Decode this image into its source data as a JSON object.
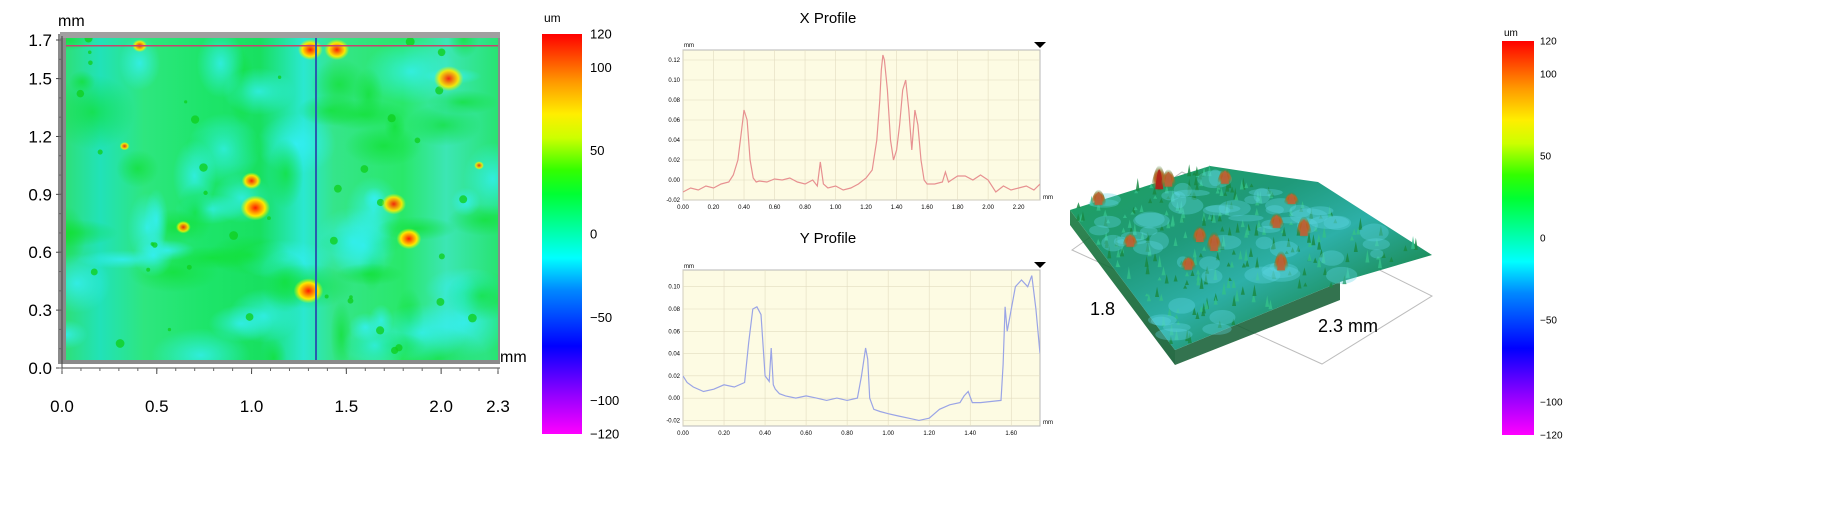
{
  "height_map": {
    "y_unit": "mm",
    "x_unit": "mm",
    "x_ticks": [
      "0.0",
      "0.5",
      "1.0",
      "1.5",
      "2.0",
      "2.3"
    ],
    "y_ticks": [
      "0.0",
      "0.3",
      "0.6",
      "0.9",
      "1.2",
      "1.5",
      "1.7"
    ],
    "x_range": [
      0,
      2.3
    ],
    "y_range": [
      0,
      1.7
    ],
    "cursor_x_mm": 1.34,
    "cursor_y_mm": 1.67,
    "hot_spots": [
      {
        "x": 0.41,
        "y": 1.67,
        "r": 0.03,
        "height": 75
      },
      {
        "x": 1.31,
        "y": 1.65,
        "r": 0.05,
        "height": 115
      },
      {
        "x": 1.45,
        "y": 1.65,
        "r": 0.05,
        "height": 85
      },
      {
        "x": 2.04,
        "y": 1.5,
        "r": 0.06,
        "height": 75
      },
      {
        "x": 1.0,
        "y": 0.97,
        "r": 0.04,
        "height": 80
      },
      {
        "x": 1.02,
        "y": 0.83,
        "r": 0.06,
        "height": 95
      },
      {
        "x": 1.75,
        "y": 0.85,
        "r": 0.05,
        "height": 75
      },
      {
        "x": 1.83,
        "y": 0.67,
        "r": 0.05,
        "height": 95
      },
      {
        "x": 1.3,
        "y": 0.4,
        "r": 0.06,
        "height": 95
      },
      {
        "x": 0.64,
        "y": 0.73,
        "r": 0.03,
        "height": 70
      },
      {
        "x": 0.33,
        "y": 1.15,
        "r": 0.02,
        "height": 70
      },
      {
        "x": 2.2,
        "y": 1.05,
        "r": 0.02,
        "height": 60
      }
    ]
  },
  "colorbar_left": {
    "unit": "um",
    "ticks": [
      "120",
      "100",
      "50",
      "0",
      "−50",
      "−100",
      "−120"
    ],
    "values": [
      120,
      100,
      50,
      0,
      -50,
      -100,
      -120
    ]
  },
  "colorbar_right": {
    "unit": "um",
    "ticks": [
      "120",
      "100",
      "50",
      "0",
      "−50",
      "−100",
      "−120"
    ],
    "values": [
      120,
      100,
      50,
      0,
      -50,
      -100,
      -120
    ]
  },
  "colors": {
    "scale": [
      "#ff00ff",
      "#7000ff",
      "#0000ff",
      "#00ffff",
      "#00ff44",
      "#00ff00",
      "#ffff00",
      "#ff8800",
      "#ff0000"
    ],
    "x_profile_line": "#e79191",
    "y_profile_line": "#9aa4e6",
    "plot_bg": "#fdfbe3",
    "crosshair_h": "#c4466e",
    "crosshair_v": "#2a5cae"
  },
  "chart_data": [
    {
      "type": "line",
      "title": "X Profile",
      "ylabel": "mm",
      "xlabel": "mm",
      "ylim": [
        -0.02,
        0.13
      ],
      "xlim": [
        0,
        2.34
      ],
      "y_ticks": [
        "0.12",
        "0.10",
        "0.08",
        "0.06",
        "0.04",
        "0.02",
        "0.00",
        "-0.02"
      ],
      "y_tick_values": [
        0.12,
        0.1,
        0.08,
        0.06,
        0.04,
        0.02,
        0.0,
        -0.02
      ],
      "x_ticks": [
        "0.00",
        "0.20",
        "0.40",
        "0.60",
        "0.80",
        "1.00",
        "1.20",
        "1.40",
        "1.60",
        "1.80",
        "2.00",
        "2.20"
      ],
      "x_tick_values": [
        0,
        0.2,
        0.4,
        0.6,
        0.8,
        1.0,
        1.2,
        1.4,
        1.6,
        1.8,
        2.0,
        2.2
      ],
      "series": [
        {
          "x": [
            0,
            0.05,
            0.1,
            0.15,
            0.2,
            0.25,
            0.3,
            0.33,
            0.36,
            0.38,
            0.4,
            0.42,
            0.44,
            0.46,
            0.48,
            0.5,
            0.55,
            0.6,
            0.65,
            0.7,
            0.75,
            0.8,
            0.85,
            0.88,
            0.9,
            0.92,
            0.95,
            1.0,
            1.05,
            1.1,
            1.15,
            1.2,
            1.24,
            1.27,
            1.29,
            1.3,
            1.31,
            1.32,
            1.34,
            1.36,
            1.38,
            1.4,
            1.42,
            1.44,
            1.46,
            1.48,
            1.5,
            1.52,
            1.54,
            1.56,
            1.58,
            1.6,
            1.65,
            1.7,
            1.72,
            1.74,
            1.76,
            1.8,
            1.85,
            1.9,
            1.95,
            2.0,
            2.05,
            2.1,
            2.15,
            2.2,
            2.25,
            2.3,
            2.34
          ],
          "y": [
            -0.012,
            -0.008,
            -0.01,
            -0.006,
            -0.008,
            -0.004,
            -0.002,
            0.005,
            0.02,
            0.045,
            0.07,
            0.06,
            0.02,
            0.002,
            -0.002,
            -0.001,
            -0.002,
            0.001,
            0.0,
            0.002,
            -0.002,
            -0.004,
            0.0,
            -0.006,
            0.018,
            -0.004,
            -0.008,
            -0.006,
            -0.01,
            -0.008,
            -0.004,
            0.002,
            0.01,
            0.04,
            0.08,
            0.11,
            0.125,
            0.12,
            0.09,
            0.04,
            0.02,
            0.03,
            0.055,
            0.09,
            0.1,
            0.07,
            0.03,
            0.07,
            0.055,
            0.02,
            0.0,
            -0.004,
            -0.004,
            -0.002,
            0.008,
            -0.002,
            0.0,
            0.004,
            0.004,
            0.0,
            0.005,
            0.0,
            -0.012,
            -0.006,
            -0.01,
            -0.008,
            -0.006,
            -0.01,
            -0.004
          ]
        }
      ]
    },
    {
      "type": "line",
      "title": "Y Profile",
      "ylabel": "mm",
      "xlabel": "mm",
      "ylim": [
        -0.025,
        0.115
      ],
      "xlim": [
        0,
        1.74
      ],
      "y_ticks": [
        "0.10",
        "0.08",
        "0.06",
        "0.04",
        "0.02",
        "0.00",
        "-0.02"
      ],
      "y_tick_values": [
        0.1,
        0.08,
        0.06,
        0.04,
        0.02,
        0.0,
        -0.02
      ],
      "x_ticks": [
        "0.00",
        "0.20",
        "0.40",
        "0.60",
        "0.80",
        "1.00",
        "1.20",
        "1.40",
        "1.60"
      ],
      "x_tick_values": [
        0,
        0.2,
        0.4,
        0.6,
        0.8,
        1.0,
        1.2,
        1.4,
        1.6
      ],
      "series": [
        {
          "x": [
            0,
            0.02,
            0.05,
            0.1,
            0.15,
            0.2,
            0.25,
            0.3,
            0.32,
            0.34,
            0.36,
            0.38,
            0.4,
            0.42,
            0.43,
            0.44,
            0.45,
            0.47,
            0.5,
            0.55,
            0.6,
            0.65,
            0.7,
            0.75,
            0.8,
            0.85,
            0.87,
            0.89,
            0.9,
            0.91,
            0.93,
            0.96,
            1.0,
            1.05,
            1.1,
            1.15,
            1.2,
            1.25,
            1.3,
            1.35,
            1.37,
            1.39,
            1.41,
            1.45,
            1.5,
            1.55,
            1.56,
            1.57,
            1.58,
            1.6,
            1.62,
            1.65,
            1.68,
            1.7,
            1.72,
            1.74
          ],
          "y": [
            0.02,
            0.014,
            0.01,
            0.006,
            0.008,
            0.012,
            0.01,
            0.014,
            0.05,
            0.08,
            0.082,
            0.075,
            0.02,
            0.015,
            0.045,
            0.012,
            0.008,
            0.004,
            0.002,
            0.0,
            0.002,
            0.0,
            -0.002,
            0.0,
            -0.002,
            0.0,
            0.02,
            0.045,
            0.035,
            0.0,
            -0.01,
            -0.012,
            -0.014,
            -0.016,
            -0.018,
            -0.02,
            -0.018,
            -0.01,
            -0.006,
            -0.004,
            0.002,
            0.006,
            -0.004,
            -0.004,
            -0.003,
            -0.002,
            0.03,
            0.082,
            0.06,
            0.08,
            0.1,
            0.106,
            0.1,
            0.11,
            0.08,
            0.04
          ]
        }
      ]
    }
  ],
  "view3d": {
    "y_label": "1.8",
    "x_label": "2.3 mm"
  }
}
